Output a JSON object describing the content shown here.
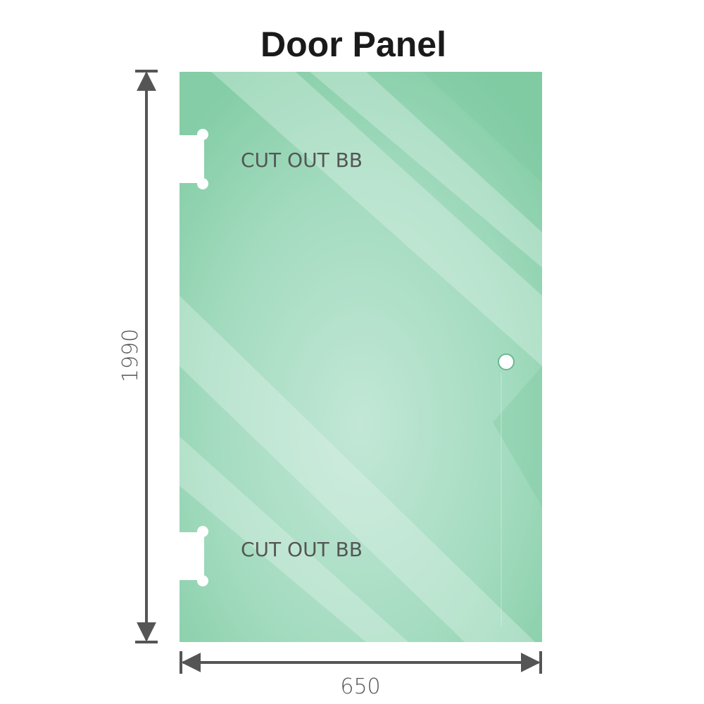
{
  "title": "Door Panel",
  "cutout_labels": [
    "CUT OUT BB",
    "CUT OUT BB"
  ],
  "dimensions": {
    "height": "1990",
    "width": "650"
  },
  "colors": {
    "glass_edge": "#86cea8",
    "glass_center": "#c2e7d6",
    "dimension_line": "#555555"
  }
}
